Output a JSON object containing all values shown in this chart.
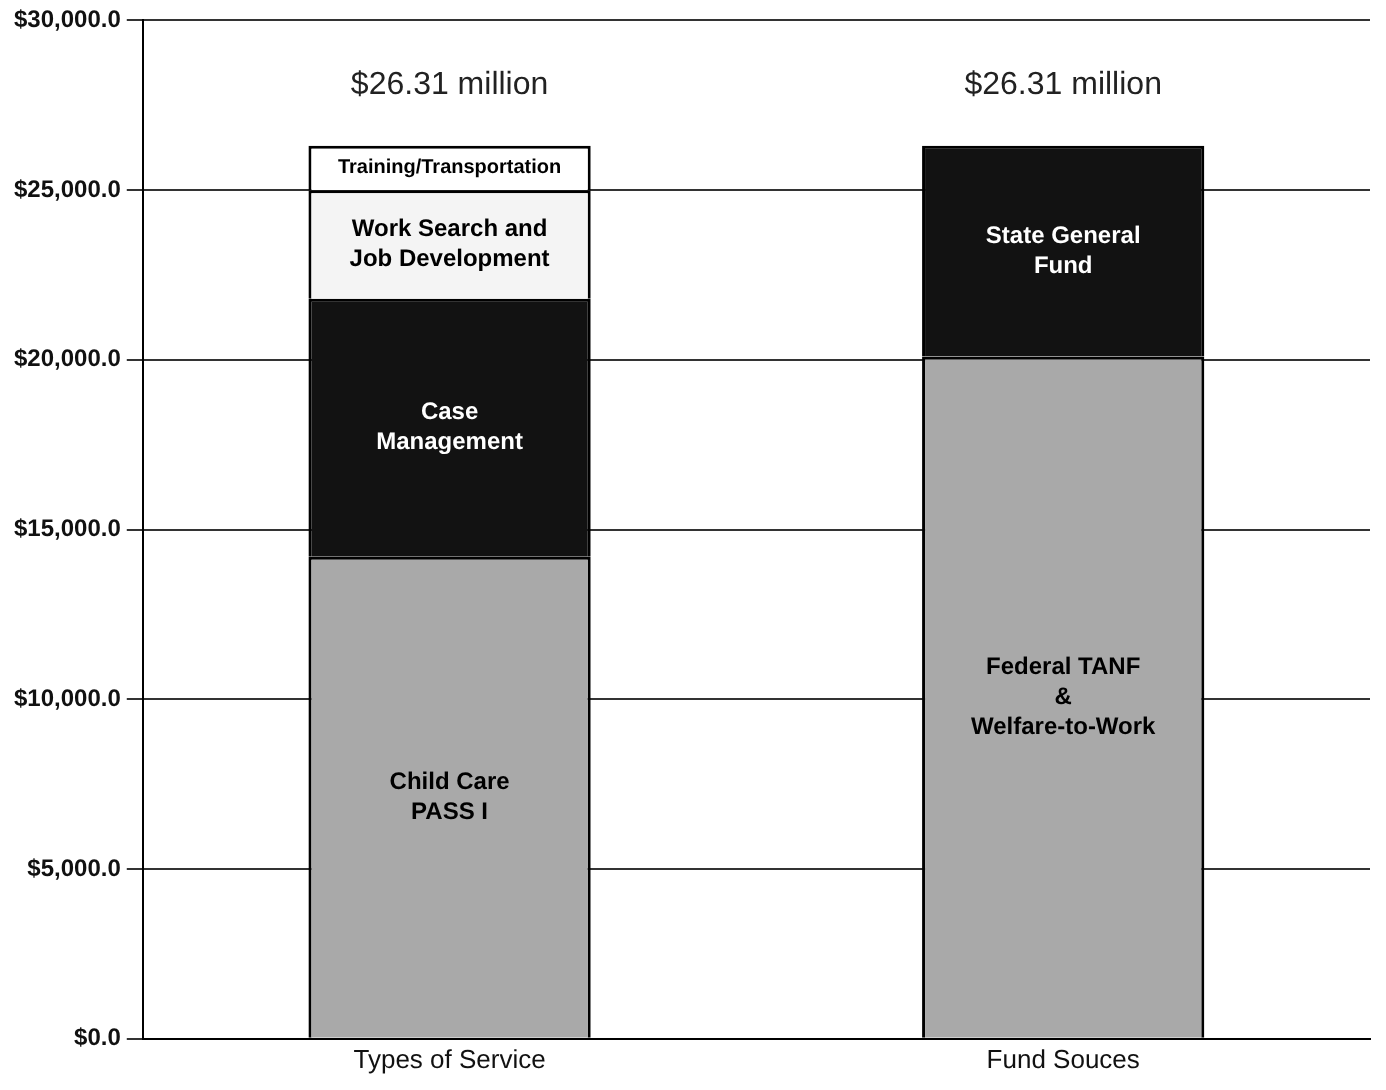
{
  "chart_data": {
    "type": "bar",
    "stacked": true,
    "categories": [
      "Types of Service",
      "Fund Souces"
    ],
    "series": [
      {
        "name": "Child Care\nPASS I",
        "color": "#a9a9a9",
        "values": [
          14200,
          null
        ]
      },
      {
        "name": "Case\nManagement",
        "color": "#121212",
        "values": [
          7600,
          null
        ]
      },
      {
        "name": "Work Search and\nJob Development",
        "color": "#f4f4f4",
        "values": [
          3200,
          null
        ]
      },
      {
        "name": "Training/Transportation",
        "color": "#ffffff",
        "values": [
          1310,
          null
        ]
      },
      {
        "name": "Federal TANF\n&\nWelfare-to-Work",
        "color": "#a9a9a9",
        "values": [
          null,
          20100
        ]
      },
      {
        "name": "State General\nFund",
        "color": "#121212",
        "values": [
          null,
          6210
        ]
      }
    ],
    "totals": [
      "$26.31 million",
      "$26.31 million"
    ],
    "ylim": [
      0,
      30000
    ],
    "yticks": [
      {
        "value": 0,
        "label": "$0.0"
      },
      {
        "value": 5000,
        "label": "$5,000.0"
      },
      {
        "value": 10000,
        "label": "$10,000.0"
      },
      {
        "value": 15000,
        "label": "$15,000.0"
      },
      {
        "value": 20000,
        "label": "$20,000.0"
      },
      {
        "value": 25000,
        "label": "$25,000.0"
      },
      {
        "value": 30000,
        "label": "$30,000.0"
      }
    ],
    "grid": "y",
    "legend": false
  }
}
